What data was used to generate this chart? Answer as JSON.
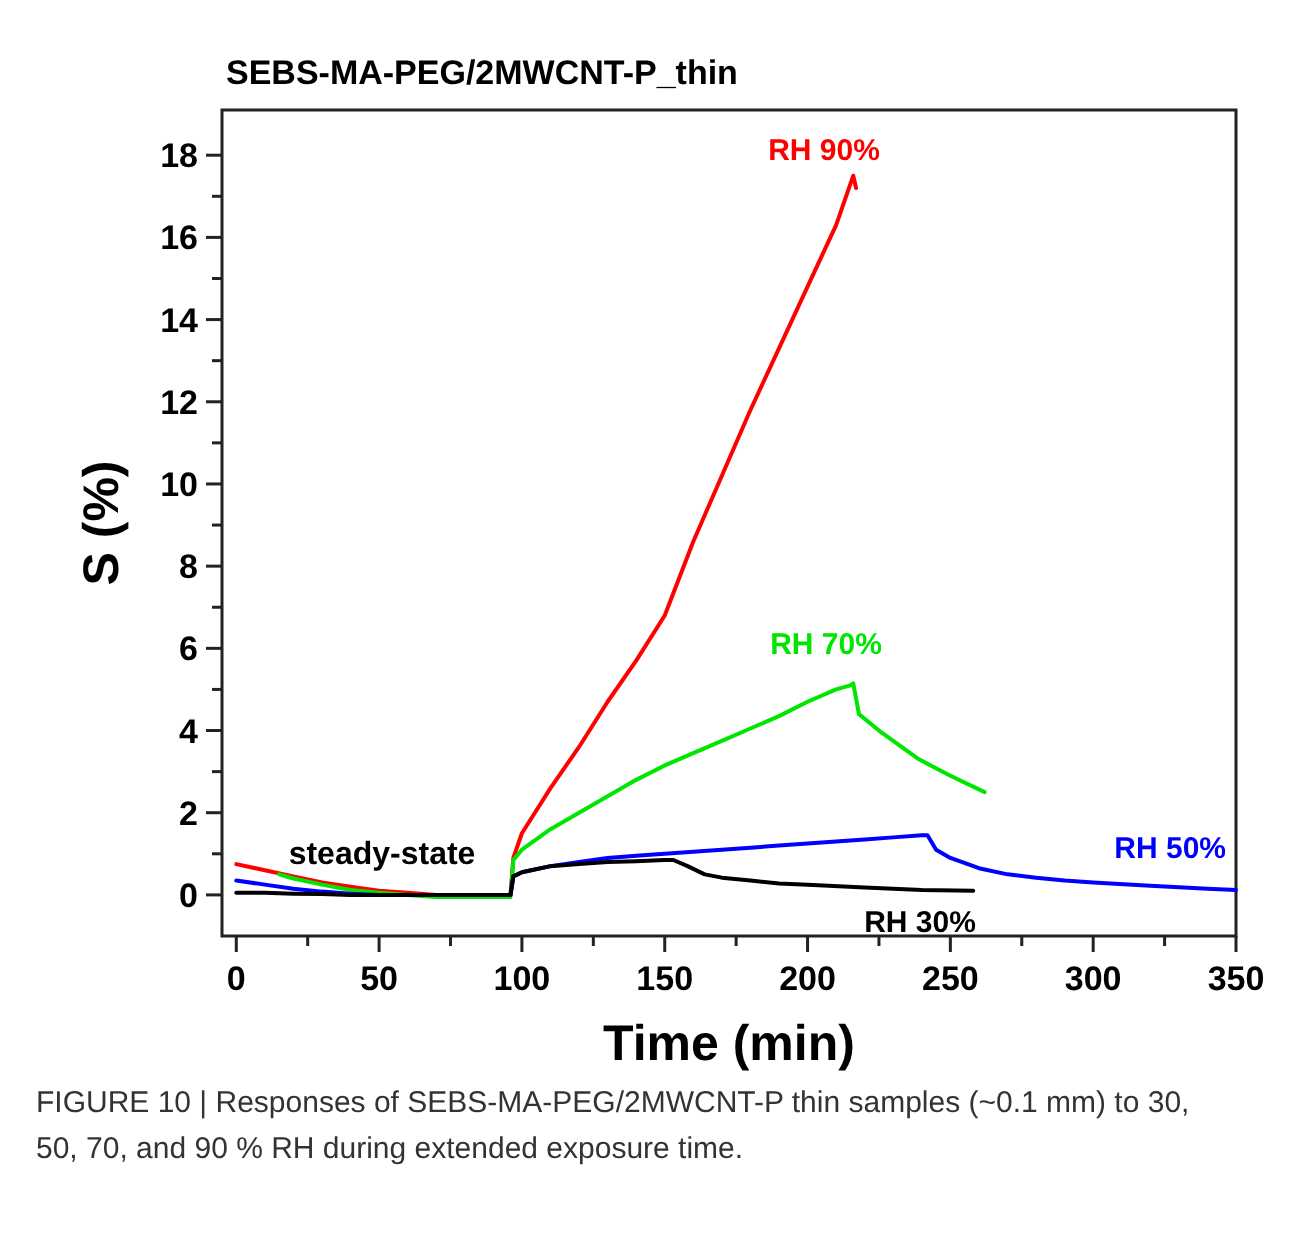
{
  "chart_data": {
    "type": "line",
    "title": "SEBS-MA-PEG/2MWCNT-P_thin",
    "xlabel": "Time (min)",
    "ylabel": "S (%)",
    "xlim": [
      -5,
      350
    ],
    "ylim": [
      -1,
      19.1
    ],
    "xticks": [
      0,
      {
        "value": 25,
        "label": null
      },
      50,
      {
        "value": 75,
        "label": null
      },
      100,
      {
        "value": 125,
        "label": null
      },
      150,
      {
        "value": 175,
        "label": null
      },
      200,
      {
        "value": 225,
        "label": null
      },
      250,
      {
        "value": 275,
        "label": null
      },
      300,
      {
        "value": 325,
        "label": null
      },
      350
    ],
    "yticks": [
      0,
      {
        "value": 1,
        "label": null
      },
      2,
      {
        "value": 3,
        "label": null
      },
      4,
      {
        "value": 5,
        "label": null
      },
      6,
      {
        "value": 7,
        "label": null
      },
      8,
      {
        "value": 9,
        "label": null
      },
      10,
      {
        "value": 11,
        "label": null
      },
      12,
      {
        "value": 13,
        "label": null
      },
      14,
      {
        "value": 15,
        "label": null
      },
      16,
      {
        "value": 17,
        "label": null
      },
      18
    ],
    "grid": false,
    "marker": "none",
    "line_style": "solid",
    "series": [
      {
        "name": "RH 90%",
        "color": "#ff0000",
        "x": [
          0,
          10,
          20,
          30,
          40,
          50,
          60,
          70,
          80,
          90,
          96,
          97,
          100,
          110,
          120,
          130,
          140,
          150,
          160,
          170,
          180,
          190,
          200,
          210,
          216,
          217
        ],
        "values": [
          0.75,
          0.6,
          0.45,
          0.3,
          0.2,
          0.1,
          0.05,
          0,
          0,
          0,
          0,
          0.9,
          1.5,
          2.6,
          3.6,
          4.7,
          5.7,
          6.8,
          8.6,
          10.2,
          11.8,
          13.3,
          14.8,
          16.3,
          17.5,
          17.2
        ]
      },
      {
        "name": "RH 70%",
        "color": "#00e600",
        "x": [
          15,
          20,
          30,
          40,
          50,
          60,
          70,
          80,
          90,
          96,
          97,
          100,
          110,
          120,
          130,
          140,
          150,
          160,
          170,
          180,
          190,
          200,
          210,
          215,
          216,
          218,
          225,
          239,
          250,
          262
        ],
        "values": [
          0.5,
          0.4,
          0.25,
          0.12,
          0.05,
          0,
          -0.05,
          -0.05,
          -0.05,
          -0.05,
          0.85,
          1.1,
          1.6,
          2.0,
          2.4,
          2.8,
          3.15,
          3.45,
          3.75,
          4.05,
          4.35,
          4.7,
          5.0,
          5.1,
          5.15,
          4.4,
          4.0,
          3.3,
          2.9,
          2.5
        ]
      },
      {
        "name": "RH 50%",
        "color": "#0000ff",
        "x": [
          0,
          10,
          20,
          30,
          40,
          50,
          60,
          70,
          80,
          90,
          96,
          97,
          100,
          110,
          120,
          130,
          140,
          150,
          160,
          170,
          180,
          190,
          200,
          210,
          220,
          230,
          240,
          242,
          245,
          250,
          260,
          270,
          280,
          290,
          300,
          320,
          340,
          350
        ],
        "values": [
          0.35,
          0.25,
          0.15,
          0.08,
          0.03,
          0,
          0,
          0,
          0,
          0,
          0,
          0.45,
          0.55,
          0.7,
          0.8,
          0.9,
          0.95,
          1.0,
          1.05,
          1.1,
          1.15,
          1.2,
          1.25,
          1.3,
          1.35,
          1.4,
          1.45,
          1.45,
          1.1,
          0.9,
          0.65,
          0.5,
          0.42,
          0.35,
          0.3,
          0.22,
          0.15,
          0.12
        ]
      },
      {
        "name": "RH 30%",
        "color": "#000000",
        "x": [
          0,
          10,
          20,
          30,
          40,
          50,
          60,
          70,
          80,
          90,
          96,
          97,
          100,
          110,
          120,
          130,
          140,
          150,
          153,
          158,
          164,
          170,
          180,
          190,
          200,
          220,
          240,
          258
        ],
        "values": [
          0.05,
          0.05,
          0.03,
          0.02,
          0,
          0,
          0,
          0,
          0,
          0,
          0,
          0.45,
          0.55,
          0.7,
          0.75,
          0.8,
          0.82,
          0.85,
          0.85,
          0.7,
          0.5,
          0.42,
          0.35,
          0.28,
          0.25,
          0.18,
          0.12,
          0.1
        ]
      }
    ],
    "annotations": [
      "steady-state",
      "FIGURE 10 | Responses of SEBS-MA-PEG/2MWCNT-P thin samples (~0.1 mm) to 30, 50, 70, and 90 % RH during extended exposure time."
    ]
  }
}
